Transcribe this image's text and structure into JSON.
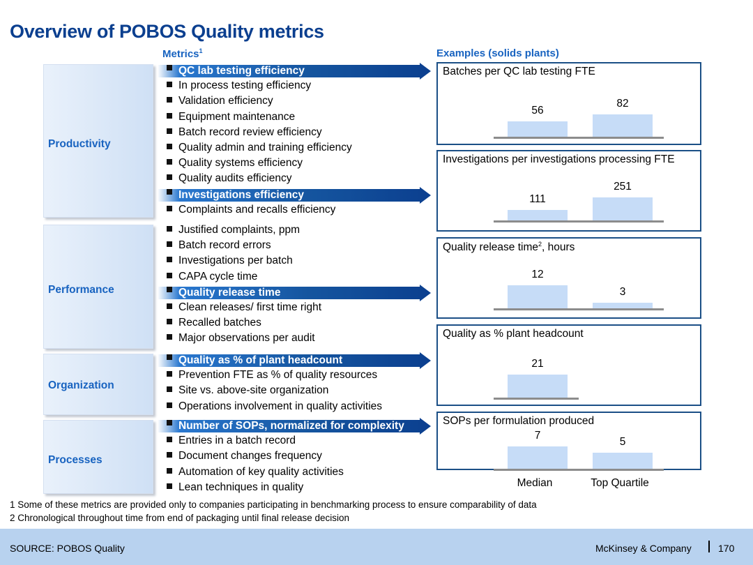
{
  "title": "Overview of POBOS Quality metrics",
  "metrics_header": "Metrics",
  "metrics_header_sup": "1",
  "examples_header": "Examples (solids plants)",
  "categories": [
    {
      "label": "Productivity",
      "metrics": [
        "QC lab testing efficiency",
        "In process testing efficiency",
        "Validation efficiency",
        "Equipment maintenance",
        "Batch record review efficiency",
        "Quality admin and training efficiency",
        "Quality systems efficiency",
        "Quality audits efficiency",
        "Investigations efficiency",
        "Complaints and recalls efficiency"
      ],
      "highlighted": [
        0,
        8
      ]
    },
    {
      "label": "Performance",
      "metrics": [
        "Justified complaints, ppm",
        "Batch record errors",
        "Investigations per batch",
        "CAPA cycle time",
        "Quality release time",
        "Clean releases/ first time right",
        "Recalled batches",
        "Major observations per audit"
      ],
      "highlighted": [
        4
      ]
    },
    {
      "label": "Organization",
      "metrics": [
        "Quality as % of plant headcount",
        "Prevention FTE as % of quality resources",
        "Site vs. above-site organization",
        "Operations involvement in quality activities"
      ],
      "highlighted": [
        0
      ]
    },
    {
      "label": "Processes",
      "metrics": [
        "Number of SOPs, normalized for complexity",
        "Entries in a batch record",
        "Document changes frequency",
        "Automation of key quality activities",
        "Lean techniques in quality"
      ],
      "highlighted": [
        0
      ]
    }
  ],
  "chart_data": [
    {
      "type": "bar",
      "title": "Batches per QC lab testing FTE",
      "categories": [
        "Median",
        "Top Quartile"
      ],
      "values": [
        56,
        82
      ]
    },
    {
      "type": "bar",
      "title": "Investigations per investigations processing FTE",
      "categories": [
        "Median",
        "Top Quartile"
      ],
      "values": [
        111,
        251
      ]
    },
    {
      "type": "bar",
      "title": "Quality release time",
      "title_sup": "2",
      "title_suffix": ", hours",
      "categories": [
        "Median",
        "Top Quartile"
      ],
      "values": [
        12,
        3
      ]
    },
    {
      "type": "bar",
      "title": "Quality as % plant headcount",
      "categories": [
        "Median"
      ],
      "values": [
        21
      ]
    },
    {
      "type": "bar",
      "title": "SOPs per formulation produced",
      "categories": [
        "Median",
        "Top Quartile"
      ],
      "values": [
        7,
        5
      ]
    }
  ],
  "x_labels": [
    "Median",
    "Top Quartile"
  ],
  "footnotes": [
    "1 Some of these metrics are provided only to companies participating in benchmarking process to ensure comparability of data",
    "2 Chronological throughout time from end of packaging until final release decision"
  ],
  "source": "SOURCE: POBOS  Quality",
  "brand": "McKinsey & Company",
  "page_number": "170",
  "colors": {
    "title": "#0b3f8f",
    "accent": "#1863c0",
    "arrow_dark": "#0b3f8f",
    "bar": "#c6dcf7",
    "box_border": "#1b4f86",
    "footer": "#b8d2ef"
  }
}
